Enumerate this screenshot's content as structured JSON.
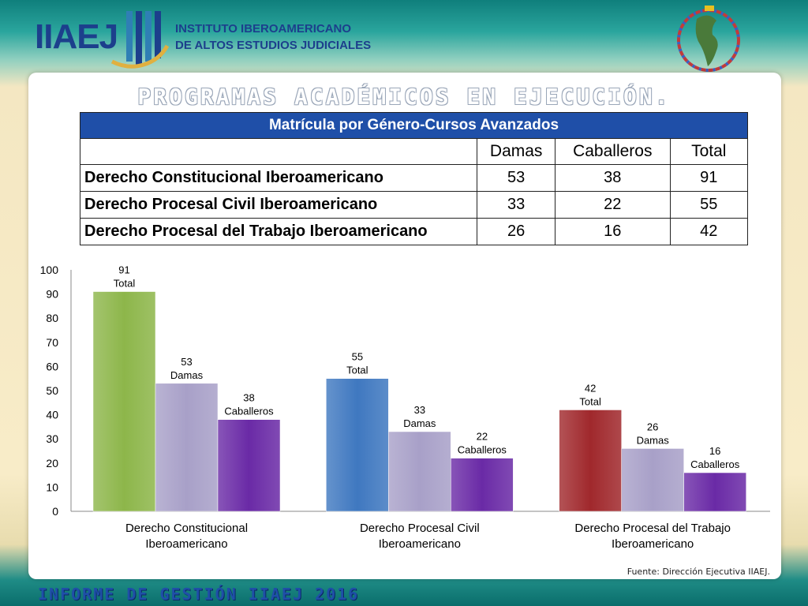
{
  "header": {
    "logo_name": "IIAEJ",
    "institute_line1": "INSTITUTO IBEROAMERICANO",
    "institute_line2": "DE ALTOS ESTUDIOS JUDICIALES",
    "globe_icon": "americas-globe-flags-icon"
  },
  "slide_title": "PROGRAMAS ACADÉMICOS EN EJECUCIÓN.",
  "table": {
    "caption": "Matrícula por Género-Cursos Avanzados",
    "headers": [
      "",
      "Damas",
      "Caballeros",
      "Total"
    ],
    "rows": [
      {
        "label": "Derecho Constitucional Iberoamericano",
        "damas": "53",
        "caballeros": "38",
        "total": "91"
      },
      {
        "label": "Derecho Procesal Civil Iberoamericano",
        "damas": "33",
        "caballeros": "22",
        "total": "55"
      },
      {
        "label": "Derecho Procesal del Trabajo Iberoamericano",
        "damas": "26",
        "caballeros": "16",
        "total": "42"
      }
    ]
  },
  "chart_data": {
    "type": "bar",
    "categories": [
      [
        "Derecho Constitucional",
        "Iberoamericano"
      ],
      [
        "Derecho Procesal Civil",
        "Iberoamericano"
      ],
      [
        "Derecho Procesal del Trabajo",
        "Iberoamericano"
      ]
    ],
    "series": [
      {
        "name": "Total",
        "values": [
          91,
          55,
          42
        ]
      },
      {
        "name": "Damas",
        "values": [
          53,
          33,
          26
        ]
      },
      {
        "name": "Caballeros",
        "values": [
          38,
          22,
          16
        ]
      }
    ],
    "bar_colors": [
      [
        "#8db64a",
        "#a8a0c8",
        "#6a2aa6"
      ],
      [
        "#3f78c0",
        "#a8a0c8",
        "#6a2aa6"
      ],
      [
        "#a0282c",
        "#a8a0c8",
        "#6a2aa6"
      ]
    ],
    "ylim": [
      0,
      100
    ],
    "yticks": [
      0,
      10,
      20,
      30,
      40,
      50,
      60,
      70,
      80,
      90,
      100
    ],
    "grid": false,
    "legend": "none"
  },
  "source": "Fuente: Dirección Ejecutiva IIAEJ.",
  "footer_title": "INFORME DE GESTIÓN IIAEJ 2016"
}
